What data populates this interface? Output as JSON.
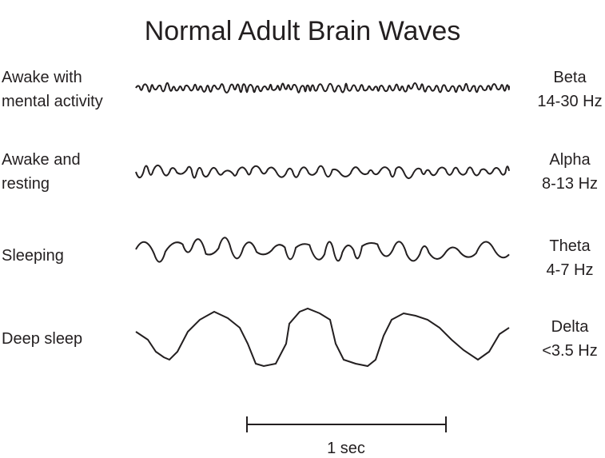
{
  "title": "Normal Adult Brain Waves",
  "rows": [
    {
      "state_lines": [
        "Awake with",
        "mental activity"
      ],
      "band": "Beta",
      "freq": "14-30 Hz"
    },
    {
      "state_lines": [
        "Awake and",
        "resting"
      ],
      "band": "Alpha",
      "freq": "8-13 Hz"
    },
    {
      "state_lines": [
        "Sleeping"
      ],
      "band": "Theta",
      "freq": "4-7 Hz"
    },
    {
      "state_lines": [
        "Deep sleep"
      ],
      "band": "Delta",
      "freq": "<3.5 Hz"
    }
  ],
  "scale_bar": {
    "label": "1 sec"
  },
  "colors": {
    "ink": "#231f20"
  }
}
